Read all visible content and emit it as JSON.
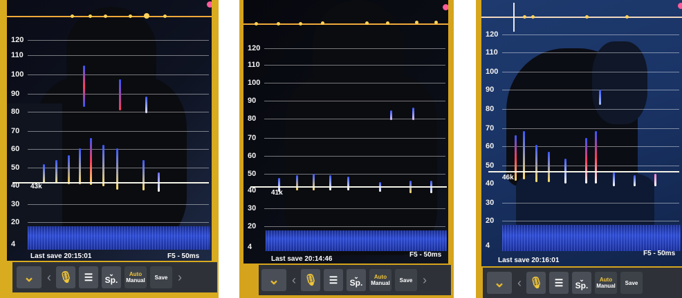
{
  "panels": [
    {
      "y_ticks": [
        "120",
        "110",
        "100",
        "90",
        "80",
        "70",
        "60",
        "50",
        "40",
        "30",
        "20",
        "4"
      ],
      "peak_label": "43k",
      "last_save": "Last save 20:15:01",
      "fft_label": "F5 - 50ms",
      "toolbar": {
        "speed_label": "Sp.",
        "auto_label": "Auto",
        "manual_label": "Manual",
        "save_label": "Save"
      }
    },
    {
      "y_ticks": [
        "120",
        "110",
        "100",
        "90",
        "80",
        "70",
        "60",
        "50",
        "40",
        "30",
        "20",
        "4"
      ],
      "peak_label": "41k",
      "last_save": "Last save 20:14:46",
      "fft_label": "F5 - 50ms",
      "toolbar": {
        "speed_label": "Sp.",
        "auto_label": "Auto",
        "manual_label": "Manual",
        "save_label": "Save"
      }
    },
    {
      "y_ticks": [
        "120",
        "110",
        "100",
        "90",
        "80",
        "70",
        "60",
        "50",
        "40",
        "30",
        "20",
        "4"
      ],
      "peak_label": "46k",
      "last_save": "Last save 20:16:01",
      "fft_label": "F5 - 50ms",
      "toolbar": {
        "speed_label": "Sp.",
        "auto_label": "Auto",
        "manual_label": "Manual",
        "save_label": "Save"
      }
    }
  ],
  "colors": {
    "frame": "#e2b321",
    "amplitude_line": "#f0a93a",
    "toolbar_bg": "#2e3238",
    "button_bg": "#4a4f57",
    "chevron_icon": "#e5b830",
    "mic_icon": "#f0c53a"
  }
}
